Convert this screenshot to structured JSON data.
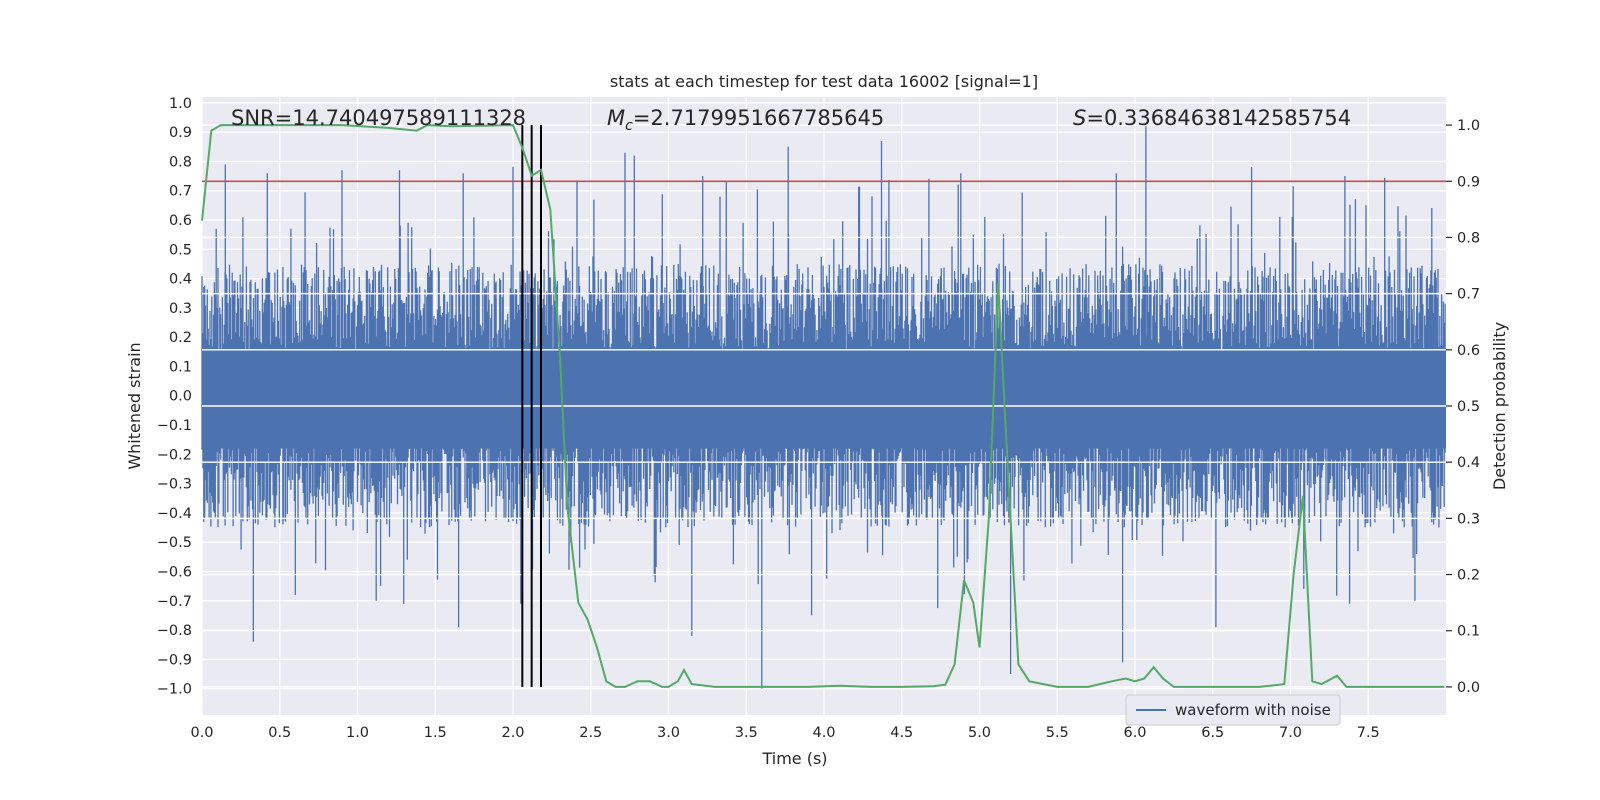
{
  "chart_data": {
    "type": "line",
    "title": "stats at each timestep for test data 16002 [signal=1]",
    "xlabel": "Time (s)",
    "ylabel": "Whitened strain",
    "y2label": "Detection probability",
    "xlim": [
      0.0,
      8.0
    ],
    "ylim": [
      -1.09,
      1.02
    ],
    "y2lim": [
      -0.05,
      1.05
    ],
    "x_ticks": [
      "0.0",
      "0.5",
      "1.0",
      "1.5",
      "2.0",
      "2.5",
      "3.0",
      "3.5",
      "4.0",
      "4.5",
      "5.0",
      "5.5",
      "6.0",
      "6.5",
      "7.0",
      "7.5"
    ],
    "y_ticks": [
      "1.0",
      "0.9",
      "0.8",
      "0.7",
      "0.6",
      "0.5",
      "0.4",
      "0.3",
      "0.2",
      "0.1",
      "0.0",
      "−0.1",
      "−0.2",
      "−0.3",
      "−0.4",
      "−0.5",
      "−0.6",
      "−0.7",
      "−0.8",
      "−0.9",
      "−1.0"
    ],
    "y2_ticks": [
      "1.0",
      "0.9",
      "0.8",
      "0.7",
      "0.6",
      "0.5",
      "0.4",
      "0.3",
      "0.2",
      "0.1",
      "0.0"
    ],
    "annotations": {
      "snr": "SNR=14.740497589111328",
      "mc_symbol": "M",
      "mc_sub": "c",
      "mc_value": "=2.7179951667785645",
      "s_symbol": "S",
      "s_value": "=0.33684638142585754"
    },
    "threshold": {
      "value": 0.9,
      "axis": "right",
      "color": "#c44e52"
    },
    "event_markers": {
      "x": [
        2.06,
        2.12,
        2.18
      ],
      "color": "#000000"
    },
    "legend": {
      "label": "waveform with noise",
      "placement": "lower-right-center"
    },
    "series": [
      {
        "name": "waveform with noise",
        "axis": "left",
        "color": "#4c72b0",
        "kind": "dense-noise-envelope",
        "typical_range": [
          -0.45,
          0.45
        ],
        "peaks_up": [
          [
            0.15,
            0.79
          ],
          [
            0.42,
            0.76
          ],
          [
            0.9,
            0.77
          ],
          [
            1.27,
            0.77
          ],
          [
            1.68,
            0.76
          ],
          [
            2.72,
            0.83
          ],
          [
            2.78,
            0.82
          ],
          [
            3.22,
            0.75
          ],
          [
            3.77,
            0.85
          ],
          [
            4.37,
            0.87
          ],
          [
            4.88,
            0.76
          ],
          [
            5.88,
            0.76
          ],
          [
            6.07,
            0.92
          ],
          [
            6.75,
            0.78
          ],
          [
            7.35,
            0.75
          ]
        ],
        "peaks_down": [
          [
            0.33,
            -0.84
          ],
          [
            0.6,
            -0.68
          ],
          [
            1.12,
            -0.7
          ],
          [
            1.65,
            -0.79
          ],
          [
            2.05,
            -0.71
          ],
          [
            3.15,
            -0.82
          ],
          [
            3.6,
            -1.0
          ],
          [
            3.92,
            -0.75
          ],
          [
            5.2,
            -0.95
          ],
          [
            5.92,
            -0.91
          ],
          [
            6.52,
            -0.79
          ],
          [
            7.38,
            -0.71
          ],
          [
            7.8,
            -0.7
          ]
        ]
      },
      {
        "name": "detection probability",
        "axis": "right",
        "color": "#55a868",
        "x": [
          0.0,
          0.06,
          0.12,
          0.3,
          0.6,
          0.9,
          1.2,
          1.38,
          1.45,
          1.6,
          1.8,
          2.0,
          2.06,
          2.12,
          2.18,
          2.24,
          2.3,
          2.35,
          2.42,
          2.48,
          2.54,
          2.6,
          2.66,
          2.72,
          2.8,
          2.88,
          2.96,
          3.0,
          3.06,
          3.1,
          3.15,
          3.3,
          3.5,
          3.7,
          3.9,
          4.1,
          4.3,
          4.5,
          4.7,
          4.78,
          4.84,
          4.9,
          4.96,
          5.0,
          5.06,
          5.12,
          5.18,
          5.25,
          5.32,
          5.5,
          5.7,
          5.85,
          5.94,
          6.0,
          6.06,
          6.12,
          6.18,
          6.25,
          6.5,
          6.8,
          6.96,
          7.02,
          7.08,
          7.14,
          7.2,
          7.3,
          7.36,
          7.5,
          7.7,
          7.99
        ],
        "values": [
          0.83,
          0.99,
          1.0,
          1.0,
          1.0,
          1.0,
          0.995,
          0.99,
          1.0,
          0.998,
          0.999,
          1.0,
          0.96,
          0.91,
          0.92,
          0.85,
          0.6,
          0.32,
          0.15,
          0.12,
          0.07,
          0.01,
          0.0,
          0.0,
          0.01,
          0.01,
          0.0,
          0.0,
          0.01,
          0.03,
          0.005,
          0.0,
          0.0,
          0.0,
          0.0,
          0.002,
          0.0,
          0.0,
          0.001,
          0.004,
          0.04,
          0.19,
          0.15,
          0.07,
          0.3,
          0.72,
          0.4,
          0.04,
          0.01,
          0.0,
          0.0,
          0.01,
          0.015,
          0.01,
          0.015,
          0.035,
          0.015,
          0.0,
          0.0,
          0.0,
          0.005,
          0.2,
          0.34,
          0.01,
          0.005,
          0.02,
          0.0,
          0.0,
          0.0,
          0.0
        ]
      }
    ]
  }
}
